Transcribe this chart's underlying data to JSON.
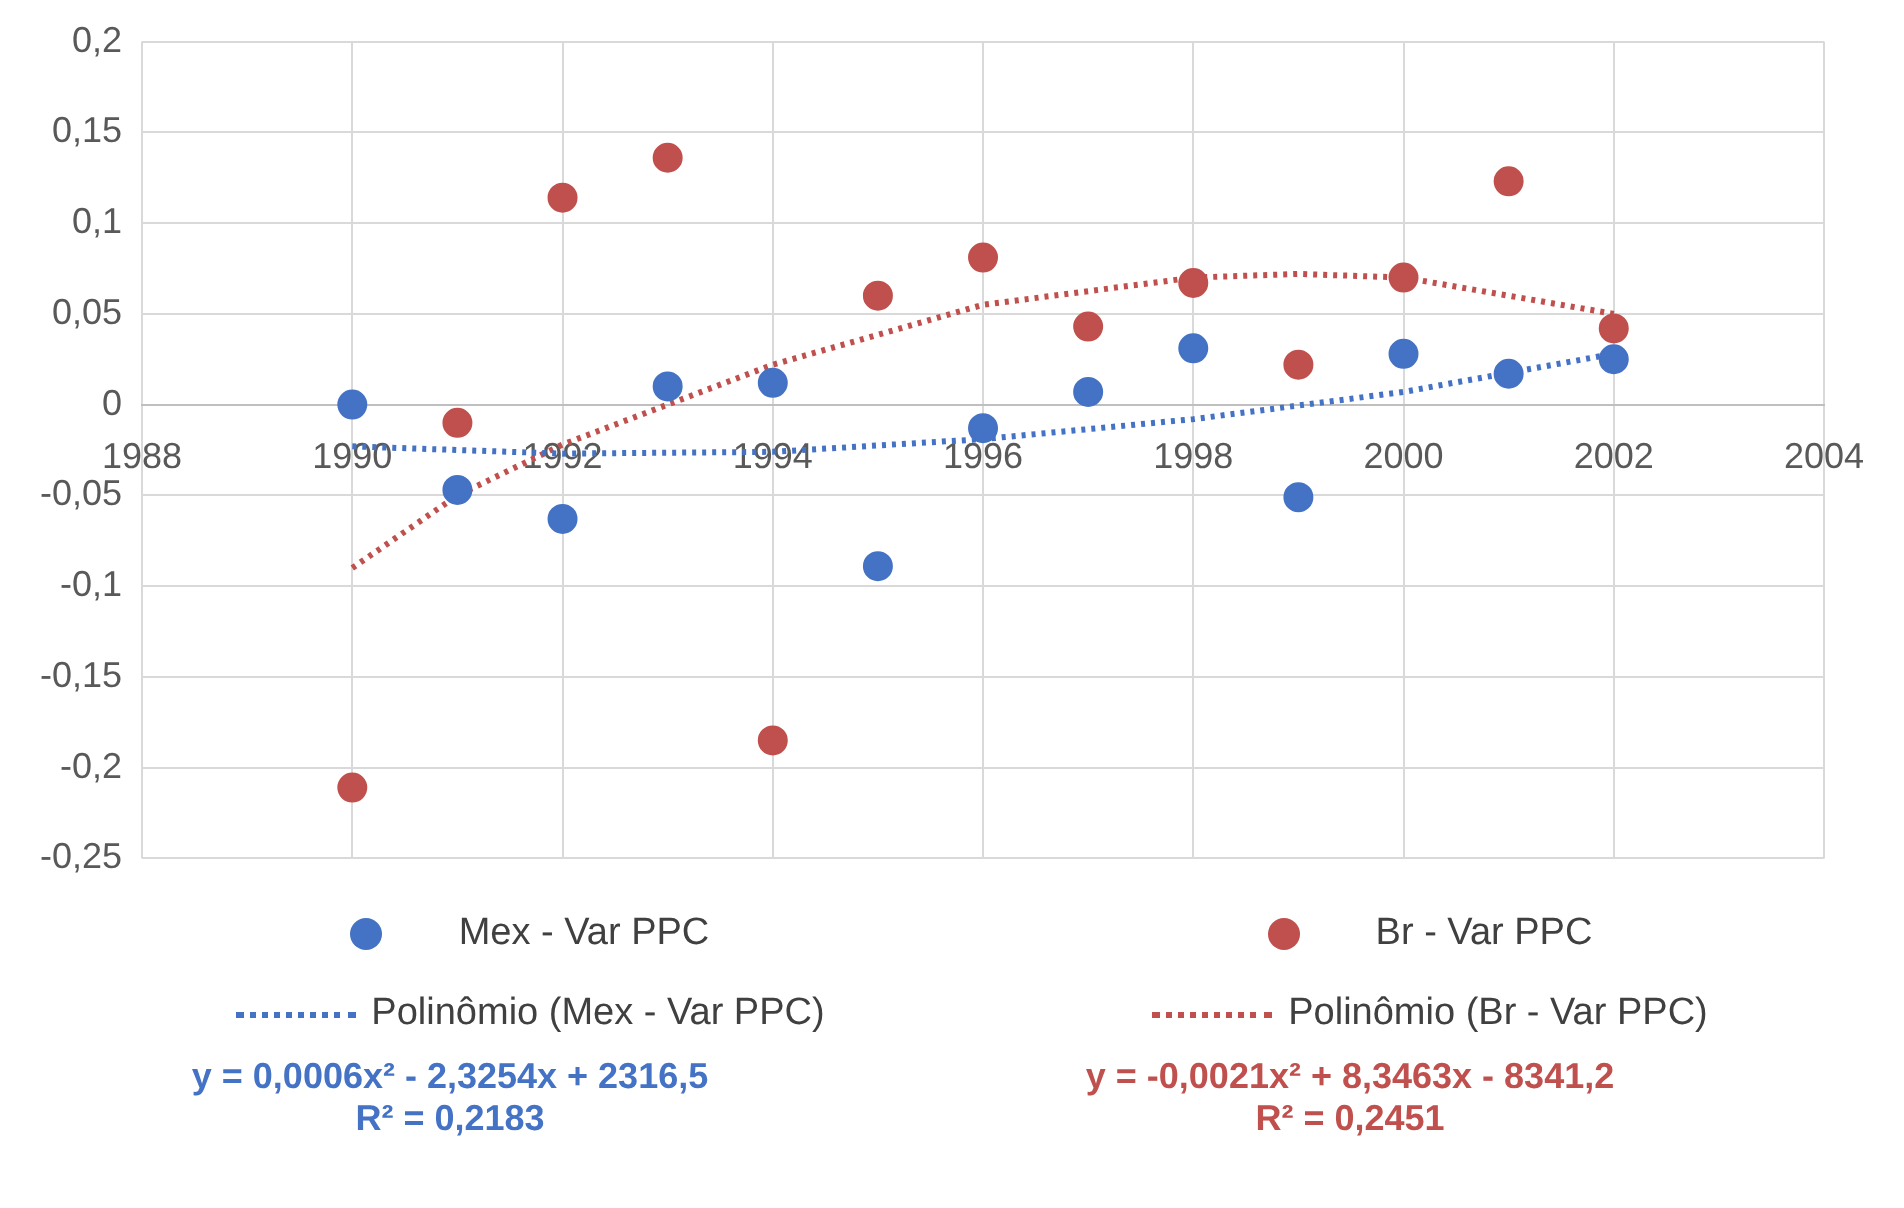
{
  "chart_data": {
    "type": "scatter",
    "x": [
      1990,
      1991,
      1992,
      1993,
      1994,
      1995,
      1996,
      1997,
      1998,
      1999,
      2000,
      2001,
      2002
    ],
    "series": [
      {
        "name": "Mex - Var PPC",
        "color": "#4472c4",
        "marker": "circle",
        "values": [
          0,
          -0.047,
          -0.063,
          0.01,
          0.012,
          -0.089,
          -0.013,
          0.007,
          0.031,
          -0.051,
          0.028,
          0.017,
          0.025
        ]
      },
      {
        "name": "Br - Var PPC",
        "color": "#c0504d",
        "marker": "circle",
        "values": [
          -0.211,
          -0.01,
          0.114,
          0.136,
          -0.185,
          0.06,
          0.081,
          0.043,
          0.067,
          0.022,
          0.07,
          0.123,
          0.042
        ]
      },
      {
        "name": "Polinômio (Mex - Var PPC)",
        "type": "line",
        "color": "#4472c4",
        "line_style": "dotted",
        "marker": "none",
        "x": [
          1990,
          1992,
          1994,
          1996,
          1998,
          2000,
          2002
        ],
        "values": [
          -0.023,
          -0.027,
          -0.026,
          -0.019,
          -0.008,
          0.007,
          0.028
        ]
      },
      {
        "name": "Polinômio (Br - Var PPC)",
        "type": "line",
        "color": "#c0504d",
        "line_style": "dotted",
        "marker": "none",
        "x": [
          1990,
          1991,
          1992,
          1994,
          1996,
          1998,
          1999,
          2000,
          2002
        ],
        "values": [
          -0.09,
          -0.05,
          -0.022,
          0.022,
          0.055,
          0.07,
          0.072,
          0.07,
          0.05
        ]
      }
    ],
    "xlim": [
      1988,
      2004
    ],
    "xticks": [
      1988,
      1990,
      1992,
      1994,
      1996,
      1998,
      2000,
      2002,
      2004
    ],
    "ylim": [
      -0.25,
      0.2
    ],
    "yticks": [
      {
        "value": -0.25,
        "label": "-0,25"
      },
      {
        "value": -0.2,
        "label": "-0,2"
      },
      {
        "value": -0.15,
        "label": "-0,15"
      },
      {
        "value": -0.1,
        "label": "-0,1"
      },
      {
        "value": -0.05,
        "label": "-0,05"
      },
      {
        "value": 0,
        "label": "0"
      },
      {
        "value": 0.05,
        "label": "0,05"
      },
      {
        "value": 0.1,
        "label": "0,1"
      },
      {
        "value": 0.15,
        "label": "0,15"
      },
      {
        "value": 0.2,
        "label": "0,2"
      }
    ],
    "grid": true,
    "legend": "bottom",
    "annotations": [
      "y = 0,0006x² - 2,3254x + 2316,5\nR² = 0,2183",
      "y = -0,0021x² + 8,3463x - 8341,2\nR² = 0,2451"
    ]
  }
}
